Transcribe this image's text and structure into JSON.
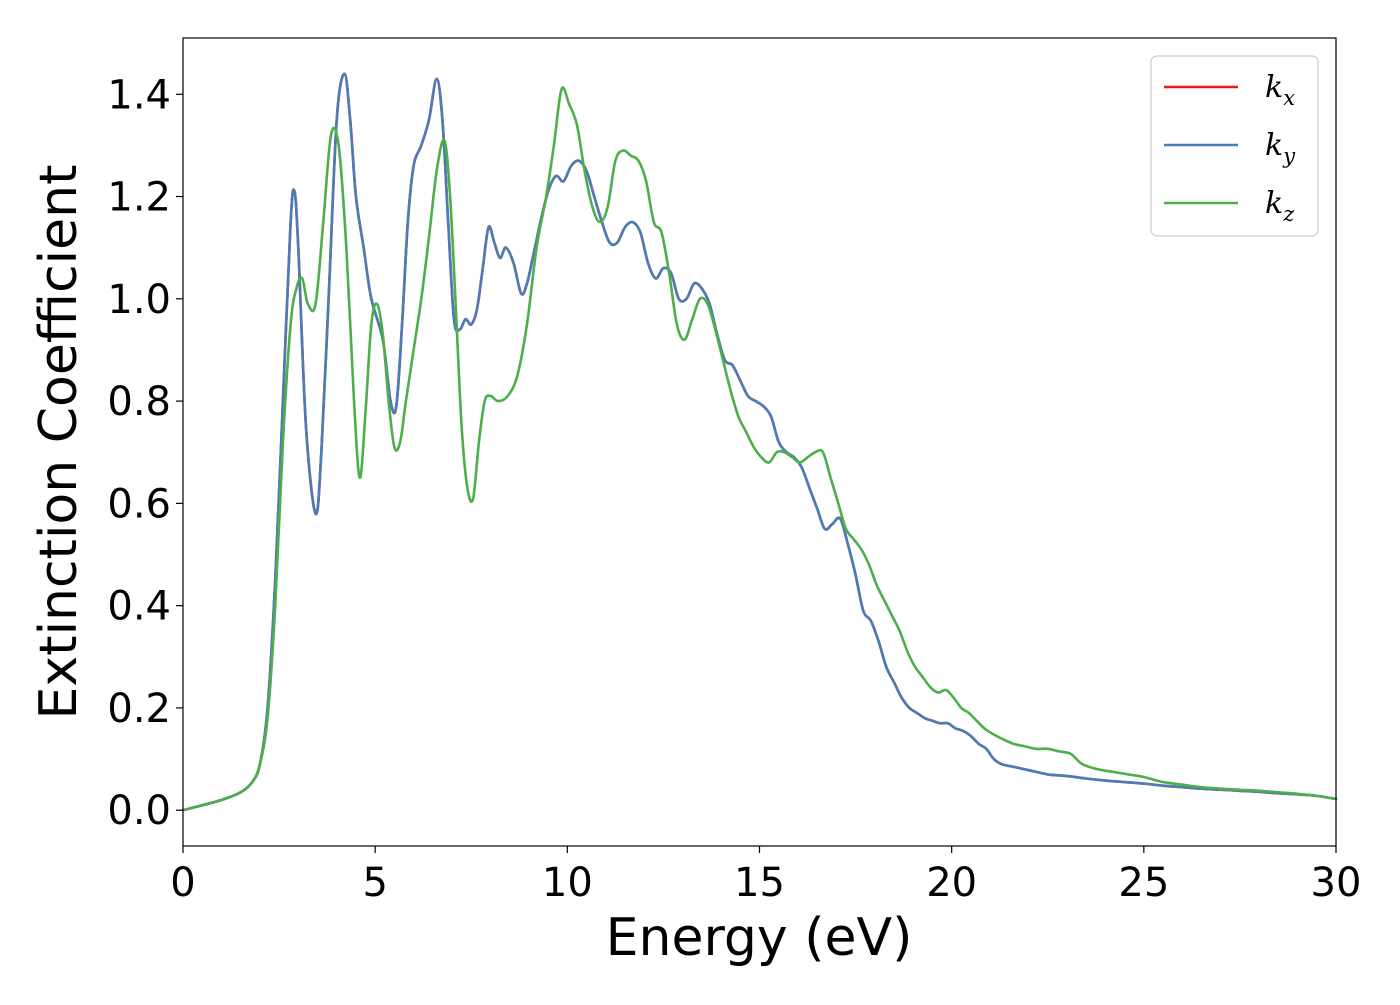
{
  "chart_data": {
    "type": "line",
    "xlabel": "Energy (eV)",
    "ylabel": "Extinction Coefficient",
    "xlim": [
      0,
      30
    ],
    "ylim": [
      -0.07,
      1.51
    ],
    "xticks": [
      0,
      5,
      10,
      15,
      20,
      25,
      30
    ],
    "xtick_labels": [
      "0",
      "5",
      "10",
      "15",
      "20",
      "25",
      "30"
    ],
    "yticks": [
      0.0,
      0.2,
      0.4,
      0.6,
      0.8,
      1.0,
      1.2,
      1.4
    ],
    "ytick_labels": [
      "0.0",
      "0.2",
      "0.4",
      "0.6",
      "0.8",
      "1.0",
      "1.2",
      "1.4"
    ],
    "grid": false,
    "legend_position": "top-right",
    "series": [
      {
        "name": "k_x",
        "label_main": "k",
        "label_sub": "x",
        "color": "#e41a1c",
        "x": [
          0,
          1,
          1.5,
          1.8,
          2.0,
          2.2,
          2.4,
          2.6,
          2.8,
          2.9,
          3.0,
          3.2,
          3.45,
          3.6,
          3.8,
          4.0,
          4.2,
          4.35,
          4.5,
          4.7,
          4.9,
          5.2,
          5.4,
          5.55,
          5.7,
          5.85,
          6.0,
          6.2,
          6.4,
          6.6,
          6.75,
          6.9,
          7.05,
          7.2,
          7.35,
          7.5,
          7.65,
          7.8,
          7.95,
          8.1,
          8.25,
          8.4,
          8.6,
          8.8,
          8.95,
          9.1,
          9.3,
          9.5,
          9.7,
          9.9,
          10.1,
          10.3,
          10.5,
          10.7,
          10.9,
          11.1,
          11.3,
          11.5,
          11.7,
          11.9,
          12.1,
          12.3,
          12.5,
          12.7,
          12.9,
          13.1,
          13.3,
          13.5,
          13.7,
          13.9,
          14.1,
          14.3,
          14.5,
          14.7,
          14.9,
          15.1,
          15.3,
          15.5,
          15.7,
          15.9,
          16.1,
          16.3,
          16.5,
          16.7,
          16.9,
          17.1,
          17.3,
          17.5,
          17.7,
          17.9,
          18.1,
          18.3,
          18.5,
          18.7,
          18.9,
          19.1,
          19.3,
          19.5,
          19.7,
          19.9,
          20.1,
          20.3,
          20.5,
          20.7,
          20.9,
          21.1,
          21.3,
          21.6,
          21.9,
          22.2,
          22.5,
          22.8,
          23.1,
          23.5,
          24.0,
          24.5,
          25.0,
          25.5,
          26.0,
          26.5,
          27.0,
          27.5,
          28.0,
          28.5,
          29.0,
          29.5,
          30.0
        ],
        "y": [
          0.0,
          0.02,
          0.035,
          0.055,
          0.09,
          0.2,
          0.45,
          0.8,
          1.15,
          1.21,
          1.1,
          0.75,
          0.58,
          0.7,
          1.02,
          1.35,
          1.44,
          1.35,
          1.2,
          1.1,
          1.0,
          0.92,
          0.8,
          0.79,
          0.95,
          1.15,
          1.26,
          1.3,
          1.35,
          1.43,
          1.35,
          1.15,
          0.96,
          0.94,
          0.96,
          0.95,
          0.98,
          1.06,
          1.14,
          1.11,
          1.08,
          1.1,
          1.07,
          1.01,
          1.03,
          1.08,
          1.15,
          1.21,
          1.24,
          1.23,
          1.26,
          1.27,
          1.25,
          1.2,
          1.15,
          1.11,
          1.11,
          1.14,
          1.15,
          1.13,
          1.07,
          1.04,
          1.06,
          1.05,
          1.0,
          1.0,
          1.03,
          1.02,
          0.99,
          0.93,
          0.88,
          0.87,
          0.84,
          0.81,
          0.8,
          0.79,
          0.77,
          0.72,
          0.7,
          0.69,
          0.67,
          0.63,
          0.59,
          0.55,
          0.56,
          0.57,
          0.52,
          0.46,
          0.39,
          0.37,
          0.33,
          0.28,
          0.25,
          0.22,
          0.2,
          0.19,
          0.18,
          0.175,
          0.17,
          0.17,
          0.16,
          0.155,
          0.145,
          0.13,
          0.12,
          0.1,
          0.09,
          0.085,
          0.08,
          0.075,
          0.07,
          0.068,
          0.066,
          0.062,
          0.058,
          0.055,
          0.052,
          0.048,
          0.045,
          0.042,
          0.04,
          0.038,
          0.036,
          0.033,
          0.031,
          0.028,
          0.022
        ]
      },
      {
        "name": "k_y",
        "label_main": "k",
        "label_sub": "y",
        "color": "#4a7db8",
        "x": [
          0,
          1,
          1.5,
          1.8,
          2.0,
          2.2,
          2.4,
          2.6,
          2.8,
          2.9,
          3.0,
          3.2,
          3.45,
          3.6,
          3.8,
          4.0,
          4.2,
          4.35,
          4.5,
          4.7,
          4.9,
          5.2,
          5.4,
          5.55,
          5.7,
          5.85,
          6.0,
          6.2,
          6.4,
          6.6,
          6.75,
          6.9,
          7.05,
          7.2,
          7.35,
          7.5,
          7.65,
          7.8,
          7.95,
          8.1,
          8.25,
          8.4,
          8.6,
          8.8,
          8.95,
          9.1,
          9.3,
          9.5,
          9.7,
          9.9,
          10.1,
          10.3,
          10.5,
          10.7,
          10.9,
          11.1,
          11.3,
          11.5,
          11.7,
          11.9,
          12.1,
          12.3,
          12.5,
          12.7,
          12.9,
          13.1,
          13.3,
          13.5,
          13.7,
          13.9,
          14.1,
          14.3,
          14.5,
          14.7,
          14.9,
          15.1,
          15.3,
          15.5,
          15.7,
          15.9,
          16.1,
          16.3,
          16.5,
          16.7,
          16.9,
          17.1,
          17.3,
          17.5,
          17.7,
          17.9,
          18.1,
          18.3,
          18.5,
          18.7,
          18.9,
          19.1,
          19.3,
          19.5,
          19.7,
          19.9,
          20.1,
          20.3,
          20.5,
          20.7,
          20.9,
          21.1,
          21.3,
          21.6,
          21.9,
          22.2,
          22.5,
          22.8,
          23.1,
          23.5,
          24.0,
          24.5,
          25.0,
          25.5,
          26.0,
          26.5,
          27.0,
          27.5,
          28.0,
          28.5,
          29.0,
          29.5,
          30.0
        ],
        "y": [
          0.0,
          0.02,
          0.035,
          0.055,
          0.09,
          0.2,
          0.45,
          0.8,
          1.15,
          1.21,
          1.1,
          0.75,
          0.58,
          0.7,
          1.02,
          1.35,
          1.44,
          1.35,
          1.2,
          1.1,
          1.0,
          0.92,
          0.8,
          0.79,
          0.95,
          1.15,
          1.26,
          1.3,
          1.35,
          1.43,
          1.35,
          1.15,
          0.96,
          0.94,
          0.96,
          0.95,
          0.98,
          1.06,
          1.14,
          1.11,
          1.08,
          1.1,
          1.07,
          1.01,
          1.03,
          1.08,
          1.15,
          1.21,
          1.24,
          1.23,
          1.26,
          1.27,
          1.25,
          1.2,
          1.15,
          1.11,
          1.11,
          1.14,
          1.15,
          1.13,
          1.07,
          1.04,
          1.06,
          1.05,
          1.0,
          1.0,
          1.03,
          1.02,
          0.99,
          0.93,
          0.88,
          0.87,
          0.84,
          0.81,
          0.8,
          0.79,
          0.77,
          0.72,
          0.7,
          0.69,
          0.67,
          0.63,
          0.59,
          0.55,
          0.56,
          0.57,
          0.52,
          0.46,
          0.39,
          0.37,
          0.33,
          0.28,
          0.25,
          0.22,
          0.2,
          0.19,
          0.18,
          0.175,
          0.17,
          0.17,
          0.16,
          0.155,
          0.145,
          0.13,
          0.12,
          0.1,
          0.09,
          0.085,
          0.08,
          0.075,
          0.07,
          0.068,
          0.066,
          0.062,
          0.058,
          0.055,
          0.052,
          0.048,
          0.045,
          0.042,
          0.04,
          0.038,
          0.036,
          0.033,
          0.031,
          0.028,
          0.022
        ]
      },
      {
        "name": "k_z",
        "label_main": "k",
        "label_sub": "z",
        "color": "#4daf4a",
        "x": [
          0,
          1,
          1.5,
          1.8,
          2.0,
          2.2,
          2.4,
          2.6,
          2.8,
          2.95,
          3.1,
          3.25,
          3.45,
          3.65,
          3.85,
          4.05,
          4.25,
          4.45,
          4.6,
          4.75,
          4.9,
          5.05,
          5.2,
          5.35,
          5.5,
          5.65,
          5.8,
          6.0,
          6.2,
          6.4,
          6.6,
          6.8,
          6.95,
          7.1,
          7.25,
          7.4,
          7.55,
          7.7,
          7.85,
          8.0,
          8.2,
          8.45,
          8.7,
          8.95,
          9.2,
          9.45,
          9.65,
          9.85,
          10.05,
          10.25,
          10.45,
          10.65,
          10.85,
          11.05,
          11.25,
          11.45,
          11.65,
          11.85,
          12.05,
          12.25,
          12.45,
          12.65,
          12.85,
          13.05,
          13.25,
          13.45,
          13.65,
          13.85,
          14.05,
          14.25,
          14.45,
          14.65,
          14.85,
          15.05,
          15.25,
          15.45,
          15.65,
          15.85,
          16.05,
          16.25,
          16.45,
          16.65,
          16.85,
          17.05,
          17.25,
          17.45,
          17.65,
          17.85,
          18.05,
          18.25,
          18.45,
          18.65,
          18.85,
          19.05,
          19.25,
          19.45,
          19.65,
          19.85,
          20.05,
          20.25,
          20.45,
          20.65,
          20.85,
          21.05,
          21.3,
          21.6,
          21.9,
          22.2,
          22.5,
          22.8,
          23.1,
          23.4,
          23.8,
          24.2,
          24.6,
          25.0,
          25.5,
          26.0,
          26.5,
          27.0,
          27.5,
          28.0,
          28.5,
          29.0,
          29.5,
          30.0
        ],
        "y": [
          0.0,
          0.02,
          0.035,
          0.055,
          0.09,
          0.18,
          0.4,
          0.72,
          0.95,
          1.02,
          1.04,
          0.99,
          0.99,
          1.15,
          1.32,
          1.3,
          1.1,
          0.8,
          0.65,
          0.78,
          0.95,
          0.99,
          0.93,
          0.8,
          0.71,
          0.72,
          0.8,
          0.9,
          1.0,
          1.12,
          1.25,
          1.31,
          1.2,
          0.98,
          0.75,
          0.63,
          0.61,
          0.72,
          0.8,
          0.81,
          0.8,
          0.81,
          0.85,
          0.95,
          1.1,
          1.2,
          1.3,
          1.41,
          1.38,
          1.34,
          1.25,
          1.18,
          1.15,
          1.18,
          1.27,
          1.29,
          1.28,
          1.27,
          1.23,
          1.15,
          1.13,
          1.05,
          0.95,
          0.92,
          0.96,
          1.0,
          0.99,
          0.94,
          0.88,
          0.82,
          0.77,
          0.74,
          0.71,
          0.69,
          0.68,
          0.7,
          0.7,
          0.69,
          0.68,
          0.69,
          0.7,
          0.7,
          0.65,
          0.6,
          0.55,
          0.53,
          0.51,
          0.48,
          0.44,
          0.41,
          0.38,
          0.35,
          0.31,
          0.28,
          0.26,
          0.24,
          0.23,
          0.235,
          0.22,
          0.2,
          0.19,
          0.175,
          0.16,
          0.15,
          0.14,
          0.13,
          0.125,
          0.12,
          0.12,
          0.115,
          0.11,
          0.09,
          0.08,
          0.075,
          0.07,
          0.065,
          0.055,
          0.05,
          0.045,
          0.042,
          0.04,
          0.038,
          0.035,
          0.032,
          0.028,
          0.022
        ]
      }
    ]
  }
}
